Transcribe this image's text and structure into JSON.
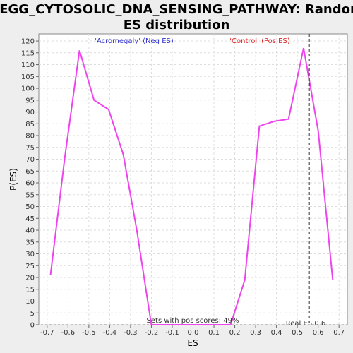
{
  "chart_data": {
    "type": "line",
    "title_line1": "KEGG_CYTOSOLIC_DNA_SENSING_PATHWAY: Random",
    "title_line2": "ES distribution",
    "xlabel": "ES",
    "ylabel": "P(ES)",
    "xlim": [
      -0.74,
      0.74
    ],
    "ylim": [
      0,
      123
    ],
    "xticks": [
      -0.7,
      -0.6,
      -0.5,
      -0.4,
      -0.3,
      -0.2,
      -0.1,
      0.0,
      0.1,
      0.2,
      0.3,
      0.4,
      0.5,
      0.6,
      0.7
    ],
    "xtick_labels": [
      "-0.7",
      "-0.6",
      "-0.5",
      "-0.4",
      "-0.3",
      "-0.2",
      "-0.1",
      "0.0",
      "0.1",
      "0.2",
      "0.3",
      "0.4",
      "0.5",
      "0.6",
      "0.7"
    ],
    "yticks": [
      0,
      5,
      10,
      15,
      20,
      25,
      30,
      35,
      40,
      45,
      50,
      55,
      60,
      65,
      70,
      75,
      80,
      85,
      90,
      95,
      100,
      105,
      110,
      115,
      120
    ],
    "grid": true,
    "series": [
      {
        "color": "#ee44ee",
        "x": [
          -0.684,
          -0.615,
          -0.545,
          -0.475,
          -0.405,
          -0.335,
          -0.27,
          -0.2,
          0.18,
          0.248,
          0.318,
          0.388,
          0.458,
          0.53,
          0.6,
          0.67
        ],
        "y": [
          21,
          71,
          116,
          95,
          91,
          72,
          40,
          0,
          0,
          19,
          84,
          86,
          87,
          117,
          82,
          19
        ]
      }
    ],
    "real_es": 0.6,
    "real_es_x": 0.556,
    "annotations": {
      "neg_label": "'Acromegaly' (Neg ES)",
      "pos_label": "'Control' (Pos ES)",
      "pos_scores": "Sets with pos scores: 49%",
      "real_es_label": "Real ES 0.6"
    },
    "colors": {
      "neg_label": "#3333cc",
      "pos_label": "#dd2222",
      "line": "#ee44ee",
      "grid": "#dddddd",
      "real_es_line": "#333333"
    }
  }
}
